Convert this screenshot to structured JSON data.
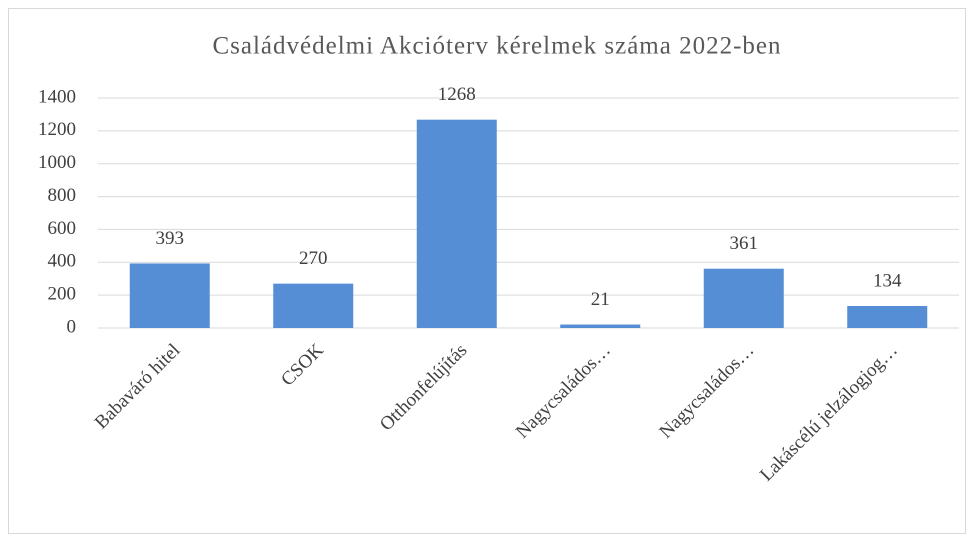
{
  "chart_data": {
    "type": "bar",
    "title": "Családvédelmi Akcióterv kérelmek száma 2022-ben",
    "categories": [
      "Babaváró hitel",
      "CSOK",
      "Otthonfelújítás",
      "Nagycsaládos…",
      "Nagycsaládos…",
      "Lakáscélú jelzálogjog…"
    ],
    "values": [
      393,
      270,
      1268,
      21,
      361,
      134
    ],
    "color": "#558ed5",
    "ylim": [
      0,
      1400
    ],
    "yticks": [
      0,
      200,
      400,
      600,
      800,
      1000,
      1200,
      1400
    ],
    "grid": true
  }
}
